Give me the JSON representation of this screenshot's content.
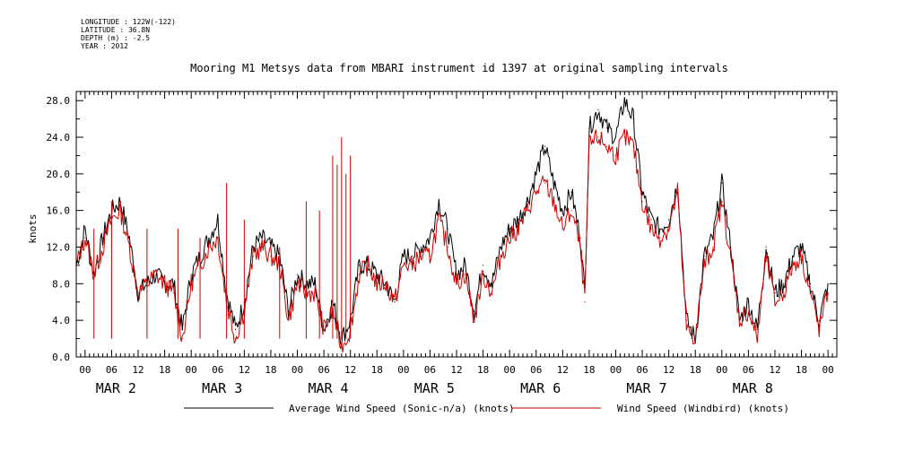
{
  "meta": {
    "longitude": "LONGITUDE : 122W(-122)",
    "latitude": "LATITUDE : 36.8N",
    "depth": "DEPTH (m) : -2.5",
    "year": "YEAR : 2012"
  },
  "colors": {
    "average": "#000000",
    "windbird": "#cc0000"
  },
  "chart_data": {
    "type": "line",
    "title": "Mooring M1 Metsys data from MBARI instrument id 1397 at original sampling intervals",
    "ylabel": "knots",
    "xlabel": "",
    "ylim": [
      0,
      29
    ],
    "yticks": [
      "0.0",
      "4.0",
      "8.0",
      "12.0",
      "16.0",
      "20.0",
      "24.0",
      "28.0"
    ],
    "x_unit": "hours since Mar 2 00:00",
    "xlim": [
      -2,
      170
    ],
    "hour_tick_labels": [
      "00",
      "06",
      "12",
      "18"
    ],
    "day_labels": [
      "MAR  2",
      "MAR  3",
      "MAR  4",
      "MAR  5",
      "MAR  6",
      "MAR  7",
      "MAR  8"
    ],
    "legend_placement": "bottom",
    "series": [
      {
        "name": "Average Wind Speed (Sonic-n/a) (knots)",
        "x": [
          -2,
          0,
          2,
          4,
          6,
          8,
          10,
          12,
          14,
          16,
          18,
          20,
          22,
          24,
          26,
          28,
          30,
          32,
          34,
          36,
          38,
          40,
          42,
          44,
          46,
          48,
          50,
          52,
          54,
          56,
          58,
          60,
          62,
          64,
          66,
          68,
          70,
          72,
          74,
          76,
          78,
          80,
          82,
          84,
          86,
          88,
          90,
          92,
          94,
          96,
          98,
          100,
          102,
          104,
          106,
          108,
          110,
          112,
          113,
          114,
          116,
          118,
          120,
          122,
          124,
          126,
          128,
          130,
          132,
          134,
          136,
          138,
          140,
          142,
          144,
          146,
          148,
          150,
          152,
          154,
          156,
          158,
          160,
          162,
          164,
          166,
          168
        ],
        "y": [
          10,
          14,
          9,
          13,
          16,
          17,
          13,
          7,
          8,
          9,
          8,
          8,
          3,
          9,
          11,
          13,
          15,
          7,
          3,
          6,
          12,
          13,
          12,
          11,
          5,
          9,
          8,
          8,
          3,
          6,
          2,
          4,
          10,
          10,
          9,
          8,
          6,
          11,
          11,
          12,
          13,
          17,
          14,
          9,
          10,
          5,
          10,
          8,
          12,
          14,
          15,
          17,
          20,
          23,
          19,
          16,
          18,
          13,
          7,
          25,
          27,
          25,
          24,
          28,
          26,
          18,
          15,
          14,
          15,
          19,
          4,
          2,
          11,
          13,
          19,
          12,
          4,
          6,
          3,
          12,
          7,
          8,
          11,
          12,
          8,
          4,
          8
        ],
        "color": "#000000"
      },
      {
        "name": "Wind Speed (Windbird) (knots)",
        "x": [
          -2,
          0,
          2,
          4,
          6,
          8,
          10,
          12,
          14,
          16,
          18,
          20,
          22,
          24,
          26,
          28,
          30,
          32,
          34,
          36,
          38,
          40,
          42,
          44,
          46,
          48,
          50,
          52,
          54,
          56,
          58,
          60,
          62,
          64,
          66,
          68,
          70,
          72,
          74,
          76,
          78,
          80,
          82,
          84,
          86,
          88,
          90,
          92,
          94,
          96,
          98,
          100,
          102,
          104,
          106,
          108,
          110,
          112,
          113,
          114,
          116,
          118,
          120,
          122,
          124,
          126,
          128,
          130,
          132,
          134,
          136,
          138,
          140,
          142,
          144,
          146,
          148,
          150,
          152,
          154,
          156,
          158,
          160,
          162,
          164,
          166,
          168
        ],
        "y": [
          10,
          13,
          9,
          12,
          15,
          16,
          12,
          7,
          8,
          9,
          8,
          7,
          2,
          8,
          10,
          12,
          13,
          6,
          2,
          5,
          11,
          12,
          11,
          10,
          4,
          8,
          7,
          7,
          3,
          5,
          1,
          3,
          9,
          10,
          8,
          8,
          6,
          10,
          10,
          11,
          11,
          15,
          12,
          8,
          9,
          4,
          9,
          7,
          11,
          13,
          14,
          16,
          18,
          19,
          17,
          14,
          16,
          12,
          6,
          23,
          24,
          23,
          22,
          24,
          23,
          17,
          14,
          13,
          14,
          18,
          3,
          2,
          10,
          12,
          17,
          11,
          4,
          5,
          2,
          11,
          6,
          7,
          10,
          11,
          7,
          3,
          7
        ],
        "spikes": [
          [
            2,
            14
          ],
          [
            6,
            17
          ],
          [
            14,
            14
          ],
          [
            21,
            14
          ],
          [
            26,
            13
          ],
          [
            32,
            19
          ],
          [
            36,
            15
          ],
          [
            44,
            12
          ],
          [
            50,
            17
          ],
          [
            53,
            16
          ],
          [
            56,
            22
          ],
          [
            57,
            21
          ],
          [
            58,
            24
          ],
          [
            59,
            20
          ],
          [
            60,
            22
          ]
        ],
        "color": "#cc0000"
      }
    ]
  },
  "legend": {
    "average_label": "Average Wind Speed (Sonic-n/a) (knots)",
    "windbird_label": "Wind Speed (Windbird) (knots)"
  }
}
